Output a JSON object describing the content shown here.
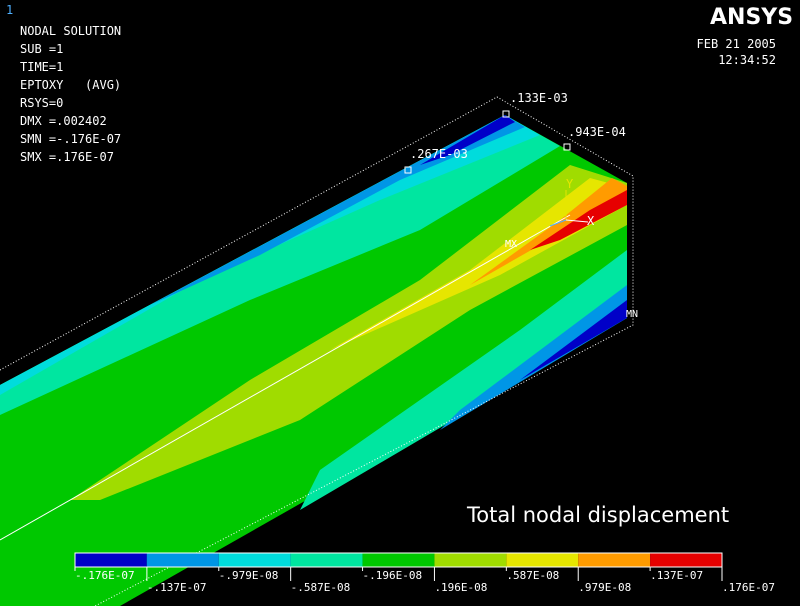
{
  "window_number": "1",
  "header": {
    "lines": [
      "NODAL SOLUTION",
      "SUB =1",
      "TIME=1",
      "EPTOXY   (AVG)",
      "RSYS=0",
      "DMX =.002402",
      "SMN =-.176E-07",
      "SMX =.176E-07"
    ]
  },
  "logo": "ANSYS",
  "date": "FEB 21 2005",
  "time": "12:34:52",
  "model_labels": {
    "top_corner": ".133E-03",
    "right_node": ".943E-04",
    "left_node": ".267E-03",
    "max": "MX",
    "min": "MN",
    "axis_x": "X",
    "axis_y": "Y"
  },
  "caption": "Total nodal displacement",
  "legend": {
    "colors": [
      "#0000c8",
      "#0096e6",
      "#00dcdc",
      "#00e6a0",
      "#00c800",
      "#a0dc00",
      "#e6e600",
      "#ff9b00",
      "#e60000"
    ],
    "labels": [
      "-.176E-07",
      "-.137E-07",
      "-.979E-08",
      "-.587E-08",
      "-.196E-08",
      ".196E-08",
      ".587E-08",
      ".979E-08",
      ".137E-07",
      ".176E-07"
    ]
  }
}
